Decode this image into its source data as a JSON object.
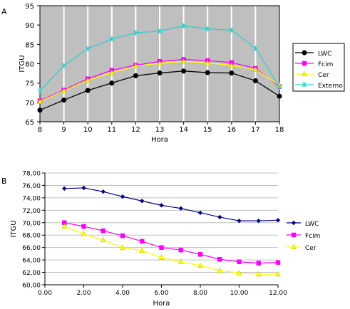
{
  "panels": {
    "A": {
      "label": "A"
    },
    "B": {
      "label": "B"
    }
  },
  "colors": {
    "LWC": "#000000",
    "Fcim": "#ff00ff",
    "Cer": "#ffff00",
    "Externo": "#33cccc",
    "LWC_B": "#000080",
    "plot_bg_A": "#bfbfbf",
    "plot_bg_B": "#ffffff",
    "gridline": "#ffffff",
    "gridline_B": "#c0c0c0"
  },
  "chart_data": [
    {
      "type": "line",
      "panel": "A",
      "title": "",
      "xlabel": "Hora",
      "ylabel": "ITGU",
      "xlim": [
        8,
        18
      ],
      "ylim": [
        65,
        95
      ],
      "x_ticks": [
        "8",
        "9",
        "10",
        "11",
        "12",
        "13",
        "14",
        "15",
        "16",
        "17",
        "18"
      ],
      "y_ticks": [
        "65",
        "70",
        "75",
        "80",
        "85",
        "90",
        "95"
      ],
      "grid": "vertical",
      "legend_position": "right",
      "x": [
        8,
        9,
        10,
        11,
        12,
        13,
        14,
        15,
        16,
        17,
        18
      ],
      "series": [
        {
          "name": "LWC",
          "marker": "circle",
          "values": [
            68.0,
            70.6,
            73.1,
            75.0,
            76.9,
            77.6,
            78.1,
            77.7,
            77.6,
            75.6,
            71.6
          ]
        },
        {
          "name": "Fcim",
          "marker": "square",
          "values": [
            70.4,
            73.2,
            76.1,
            78.3,
            79.6,
            80.6,
            81.1,
            80.8,
            80.3,
            78.8,
            74.1
          ]
        },
        {
          "name": "Cer",
          "marker": "triangle",
          "values": [
            70.2,
            73.0,
            75.7,
            77.7,
            79.4,
            80.1,
            80.6,
            80.2,
            79.6,
            78.5,
            74.4
          ]
        },
        {
          "name": "Externo",
          "marker": "x",
          "values": [
            73.0,
            79.5,
            83.9,
            86.4,
            88.0,
            88.4,
            89.8,
            89.0,
            88.7,
            84.0,
            74.0
          ]
        }
      ]
    },
    {
      "type": "line",
      "panel": "B",
      "title": "",
      "xlabel": "Hora",
      "ylabel": "ITGU",
      "xlim": [
        0,
        12
      ],
      "ylim": [
        60,
        78
      ],
      "x_ticks": [
        "0.00",
        "2.00",
        "4.00",
        "6.00",
        "8.00",
        "10.00",
        "12.00"
      ],
      "y_ticks": [
        "60,00",
        "62,00",
        "64,00",
        "66,00",
        "68,00",
        "70,00",
        "72,00",
        "74,00",
        "76,00",
        "78,00"
      ],
      "grid": "horizontal",
      "legend_position": "right",
      "x": [
        1,
        2,
        3,
        4,
        5,
        6,
        7,
        8,
        9,
        10,
        11,
        12
      ],
      "series": [
        {
          "name": "LWC",
          "marker": "diamond",
          "values": [
            75.5,
            75.6,
            75.0,
            74.2,
            73.5,
            72.8,
            72.3,
            71.6,
            70.9,
            70.3,
            70.3,
            70.4
          ]
        },
        {
          "name": "Fcim",
          "marker": "square",
          "values": [
            70.0,
            69.4,
            68.7,
            67.9,
            67.0,
            66.0,
            65.6,
            64.9,
            64.1,
            63.7,
            63.5,
            63.6
          ]
        },
        {
          "name": "Cer",
          "marker": "triangle",
          "values": [
            69.4,
            68.2,
            67.2,
            66.0,
            65.5,
            64.4,
            63.7,
            63.1,
            62.3,
            61.9,
            61.7,
            61.7
          ]
        }
      ]
    }
  ]
}
